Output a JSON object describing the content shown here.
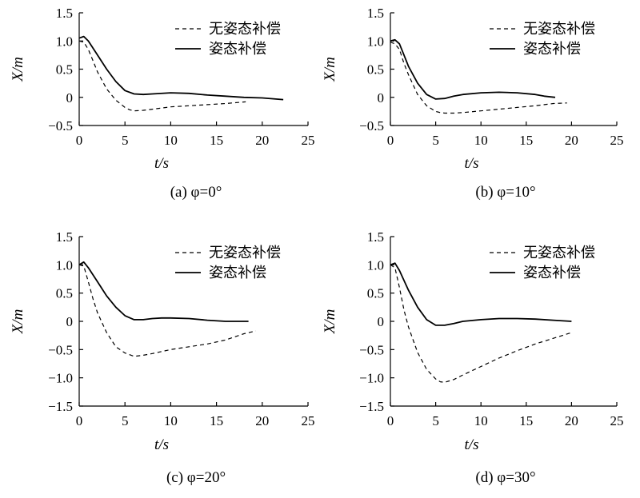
{
  "chart_data": [
    {
      "type": "line",
      "caption": "(a) φ=0°",
      "xlabel": "t/s",
      "ylabel": "X/m",
      "xlim": [
        0,
        25
      ],
      "ylim": [
        -0.5,
        1.5
      ],
      "xticks": [
        0,
        5,
        10,
        15,
        20,
        25
      ],
      "yticks": [
        1.5,
        1.0,
        0.5,
        0,
        -0.5
      ],
      "ytick_labels": [
        "1.5",
        "1.0",
        "0.5",
        "0",
        "−0.5"
      ],
      "legend": [
        "无姿态补偿",
        "姿态补偿"
      ],
      "series": [
        {
          "name": "无姿态补偿",
          "style": "dashed",
          "x": [
            0,
            0.5,
            1,
            1.5,
            2,
            3,
            4,
            5,
            5.5,
            6,
            7,
            8,
            10,
            12,
            14,
            16,
            18.2
          ],
          "y": [
            1.0,
            0.98,
            0.85,
            0.65,
            0.45,
            0.15,
            -0.05,
            -0.18,
            -0.22,
            -0.24,
            -0.23,
            -0.21,
            -0.17,
            -0.15,
            -0.13,
            -0.11,
            -0.08
          ]
        },
        {
          "name": "姿态补偿",
          "style": "solid",
          "x": [
            0,
            0.5,
            1,
            2,
            3,
            4,
            5,
            6,
            7,
            8,
            10,
            12,
            14,
            16,
            18,
            20,
            22.3
          ],
          "y": [
            1.05,
            1.08,
            1.0,
            0.75,
            0.5,
            0.28,
            0.12,
            0.06,
            0.05,
            0.06,
            0.08,
            0.07,
            0.04,
            0.02,
            0.0,
            -0.01,
            -0.04
          ]
        }
      ]
    },
    {
      "type": "line",
      "caption": "(b) φ=10°",
      "xlabel": "t/s",
      "ylabel": "X/m",
      "xlim": [
        0,
        25
      ],
      "ylim": [
        -0.5,
        1.5
      ],
      "xticks": [
        0,
        5,
        10,
        15,
        20,
        25
      ],
      "yticks": [
        1.5,
        1.0,
        0.5,
        0,
        -0.5
      ],
      "ytick_labels": [
        "1.5",
        "1.0",
        "0.5",
        "0",
        "−0.5"
      ],
      "legend": [
        "无姿态补偿",
        "姿态补偿"
      ],
      "series": [
        {
          "name": "无姿态补偿",
          "style": "dashed",
          "x": [
            0,
            0.5,
            1,
            1.5,
            2,
            3,
            4,
            5,
            5.5,
            6,
            7,
            8,
            10,
            12,
            14,
            16,
            18,
            19.5
          ],
          "y": [
            0.98,
            0.95,
            0.85,
            0.6,
            0.4,
            0.05,
            -0.15,
            -0.25,
            -0.27,
            -0.28,
            -0.28,
            -0.27,
            -0.24,
            -0.21,
            -0.18,
            -0.15,
            -0.11,
            -0.1
          ]
        },
        {
          "name": "姿态补偿",
          "style": "solid",
          "x": [
            0,
            0.5,
            1,
            1.5,
            2,
            3,
            4,
            5,
            6,
            7,
            8,
            10,
            12,
            14,
            16,
            17,
            18.2
          ],
          "y": [
            1.0,
            1.02,
            0.95,
            0.75,
            0.55,
            0.25,
            0.05,
            -0.03,
            -0.02,
            0.02,
            0.05,
            0.08,
            0.09,
            0.08,
            0.05,
            0.02,
            0.0
          ]
        }
      ]
    },
    {
      "type": "line",
      "caption": "(c) φ=20°",
      "xlabel": "t/s",
      "ylabel": "X/m",
      "xlim": [
        0,
        25
      ],
      "ylim": [
        -1.5,
        1.5
      ],
      "xticks": [
        0,
        5,
        10,
        15,
        20,
        25
      ],
      "yticks": [
        1.5,
        1.0,
        0.5,
        0,
        -0.5,
        -1.0,
        -1.5
      ],
      "ytick_labels": [
        "1.5",
        "1.0",
        "0.5",
        "0",
        "−0.5",
        "−1.0",
        "−1.5"
      ],
      "legend": [
        "无姿态补偿",
        "姿态补偿"
      ],
      "series": [
        {
          "name": "无姿态补偿",
          "style": "dashed",
          "x": [
            0,
            0.5,
            1,
            1.5,
            2,
            3,
            4,
            5,
            6,
            7,
            8,
            10,
            12,
            14,
            16,
            18,
            19.3
          ],
          "y": [
            1.0,
            0.98,
            0.7,
            0.4,
            0.15,
            -0.2,
            -0.45,
            -0.56,
            -0.62,
            -0.6,
            -0.57,
            -0.5,
            -0.45,
            -0.4,
            -0.33,
            -0.22,
            -0.17
          ]
        },
        {
          "name": "姿态补偿",
          "style": "solid",
          "x": [
            0,
            0.5,
            1,
            2,
            3,
            4,
            5,
            6,
            7,
            8,
            9,
            10,
            12,
            14,
            16,
            18.5
          ],
          "y": [
            1.0,
            1.05,
            0.95,
            0.7,
            0.45,
            0.25,
            0.1,
            0.03,
            0.03,
            0.05,
            0.06,
            0.06,
            0.05,
            0.02,
            0.0,
            0.0
          ]
        }
      ]
    },
    {
      "type": "line",
      "caption": "(d) φ=30°",
      "xlabel": "t/s",
      "ylabel": "X/m",
      "xlim": [
        0,
        25
      ],
      "ylim": [
        -1.5,
        1.5
      ],
      "xticks": [
        0,
        5,
        10,
        15,
        20,
        25
      ],
      "yticks": [
        1.5,
        1.0,
        0.5,
        0,
        -0.5,
        -1.0,
        -1.5
      ],
      "ytick_labels": [
        "1.5",
        "1.0",
        "0.5",
        "0",
        "−0.5",
        "−1.0",
        "−1.5"
      ],
      "legend": [
        "无姿态补偿",
        "姿态补偿"
      ],
      "series": [
        {
          "name": "无姿态补偿",
          "style": "dashed",
          "x": [
            0,
            0.5,
            1,
            1.5,
            2,
            3,
            4,
            5,
            5.5,
            6,
            7,
            8,
            10,
            12,
            14,
            16,
            18,
            20
          ],
          "y": [
            1.0,
            0.95,
            0.6,
            0.2,
            -0.1,
            -0.55,
            -0.85,
            -1.02,
            -1.07,
            -1.08,
            -1.03,
            -0.95,
            -0.8,
            -0.65,
            -0.52,
            -0.4,
            -0.3,
            -0.2
          ]
        },
        {
          "name": "姿态补偿",
          "style": "solid",
          "x": [
            0,
            0.5,
            1,
            2,
            3,
            4,
            5,
            6,
            7,
            8,
            10,
            12,
            14,
            16,
            18,
            20
          ],
          "y": [
            1.0,
            1.03,
            0.9,
            0.55,
            0.25,
            0.03,
            -0.07,
            -0.07,
            -0.04,
            0.0,
            0.03,
            0.05,
            0.05,
            0.04,
            0.02,
            0.0
          ]
        }
      ]
    }
  ]
}
